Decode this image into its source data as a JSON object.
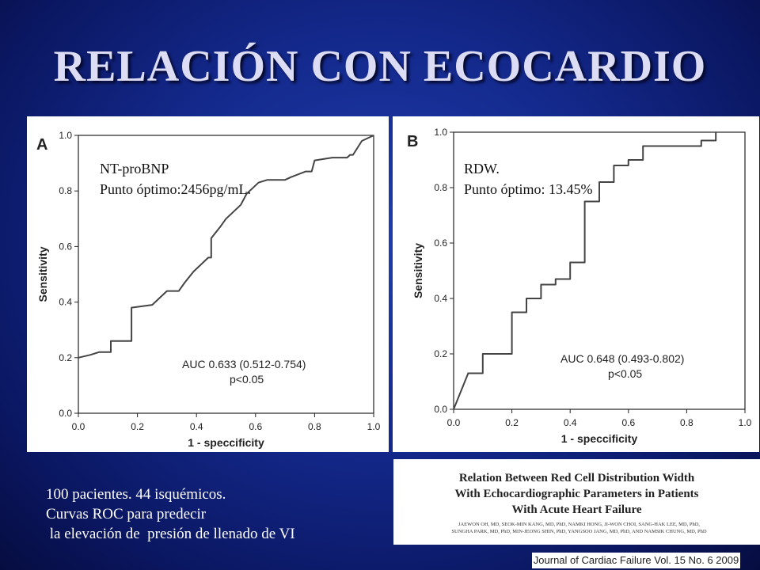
{
  "slide": {
    "title": "RELACIÓN CON ECOCARDIO",
    "notes": [
      "100 pacientes. 44 isquémicos.",
      "Curvas ROC para predecir",
      " la elevación de  presión de llenado de VI"
    ]
  },
  "paper": {
    "title_lines": [
      "Relation Between Red Cell Distribution Width",
      "With Echocardiographic Parameters in Patients",
      "With Acute Heart Failure"
    ],
    "authors": [
      "JAEWON OH, MD, SEOK-MIN KANG, MD, PhD, NAMKI HONG, JI-WON CHOI, SANG-HAK LEE, MD, PhD,",
      "SUNGHA PARK, MD, PhD, MIN-JEONG SHIN, PhD, YANGSOO JANG, MD, PhD, AND NAMSIK CHUNG, MD, PhD"
    ],
    "journal": "Journal of Cardiac Failure Vol. 15 No. 6 2009"
  },
  "colors": {
    "background": "#13288a",
    "title": "#dcdcf4",
    "notes": "#ffffff",
    "curve": "#444444"
  },
  "chart_data": [
    {
      "type": "line",
      "panel_label": "A",
      "xlabel": "1 - speccificity",
      "ylabel": "Sensitivity",
      "xlim": [
        0,
        1
      ],
      "ylim": [
        0,
        1
      ],
      "xticks": [
        "0.0",
        "0.2",
        "0.4",
        "0.6",
        "0.8",
        "1.0"
      ],
      "yticks": [
        "0.0",
        "0.2",
        "0.4",
        "0.6",
        "0.8",
        "1.0"
      ],
      "annotation": [
        "NT-proBNP",
        "Punto óptimo:2456pg/mL."
      ],
      "stats": [
        "AUC 0.633 (0.512-0.754)",
        "p<0.05"
      ],
      "series": [
        {
          "x": [
            0,
            0.04,
            0.07,
            0.11,
            0.11,
            0.18,
            0.18,
            0.25,
            0.27,
            0.3,
            0.34,
            0.36,
            0.39,
            0.41,
            0.44,
            0.45,
            0.45,
            0.48,
            0.5,
            0.52,
            0.55,
            0.57,
            0.59,
            0.61,
            0.64,
            0.66,
            0.7,
            0.72,
            0.77,
            0.79,
            0.8,
            0.86,
            0.91,
            0.92,
            0.93,
            0.96,
            1.0
          ],
          "y": [
            0.2,
            0.21,
            0.22,
            0.22,
            0.26,
            0.26,
            0.38,
            0.39,
            0.41,
            0.44,
            0.44,
            0.47,
            0.51,
            0.53,
            0.56,
            0.56,
            0.63,
            0.67,
            0.7,
            0.72,
            0.75,
            0.79,
            0.81,
            0.83,
            0.84,
            0.84,
            0.84,
            0.85,
            0.87,
            0.87,
            0.91,
            0.92,
            0.92,
            0.93,
            0.93,
            0.98,
            1.0
          ]
        }
      ]
    },
    {
      "type": "line",
      "panel_label": "B",
      "xlabel": "1 - speccificity",
      "ylabel": "Sensitivity",
      "xlim": [
        0,
        1
      ],
      "ylim": [
        0,
        1
      ],
      "xticks": [
        "0.0",
        "0.2",
        "0.4",
        "0.6",
        "0.8",
        "1.0"
      ],
      "yticks": [
        "0.0",
        "0.2",
        "0.4",
        "0.6",
        "0.8",
        "1.0"
      ],
      "annotation": [
        "RDW.",
        "Punto óptimo: 13.45%"
      ],
      "stats": [
        "AUC 0.648 (0.493-0.802)",
        "p<0.05"
      ],
      "series": [
        {
          "x": [
            0,
            0.05,
            0.05,
            0.1,
            0.1,
            0.2,
            0.2,
            0.25,
            0.25,
            0.3,
            0.3,
            0.35,
            0.35,
            0.4,
            0.4,
            0.45,
            0.45,
            0.5,
            0.5,
            0.55,
            0.55,
            0.6,
            0.6,
            0.65,
            0.65,
            0.85,
            0.85,
            0.9,
            0.9
          ],
          "y": [
            0,
            0.13,
            0.13,
            0.13,
            0.2,
            0.2,
            0.35,
            0.35,
            0.4,
            0.4,
            0.45,
            0.45,
            0.47,
            0.47,
            0.53,
            0.53,
            0.75,
            0.75,
            0.82,
            0.82,
            0.88,
            0.88,
            0.9,
            0.9,
            0.95,
            0.95,
            0.97,
            0.97,
            1.0
          ]
        }
      ]
    }
  ]
}
